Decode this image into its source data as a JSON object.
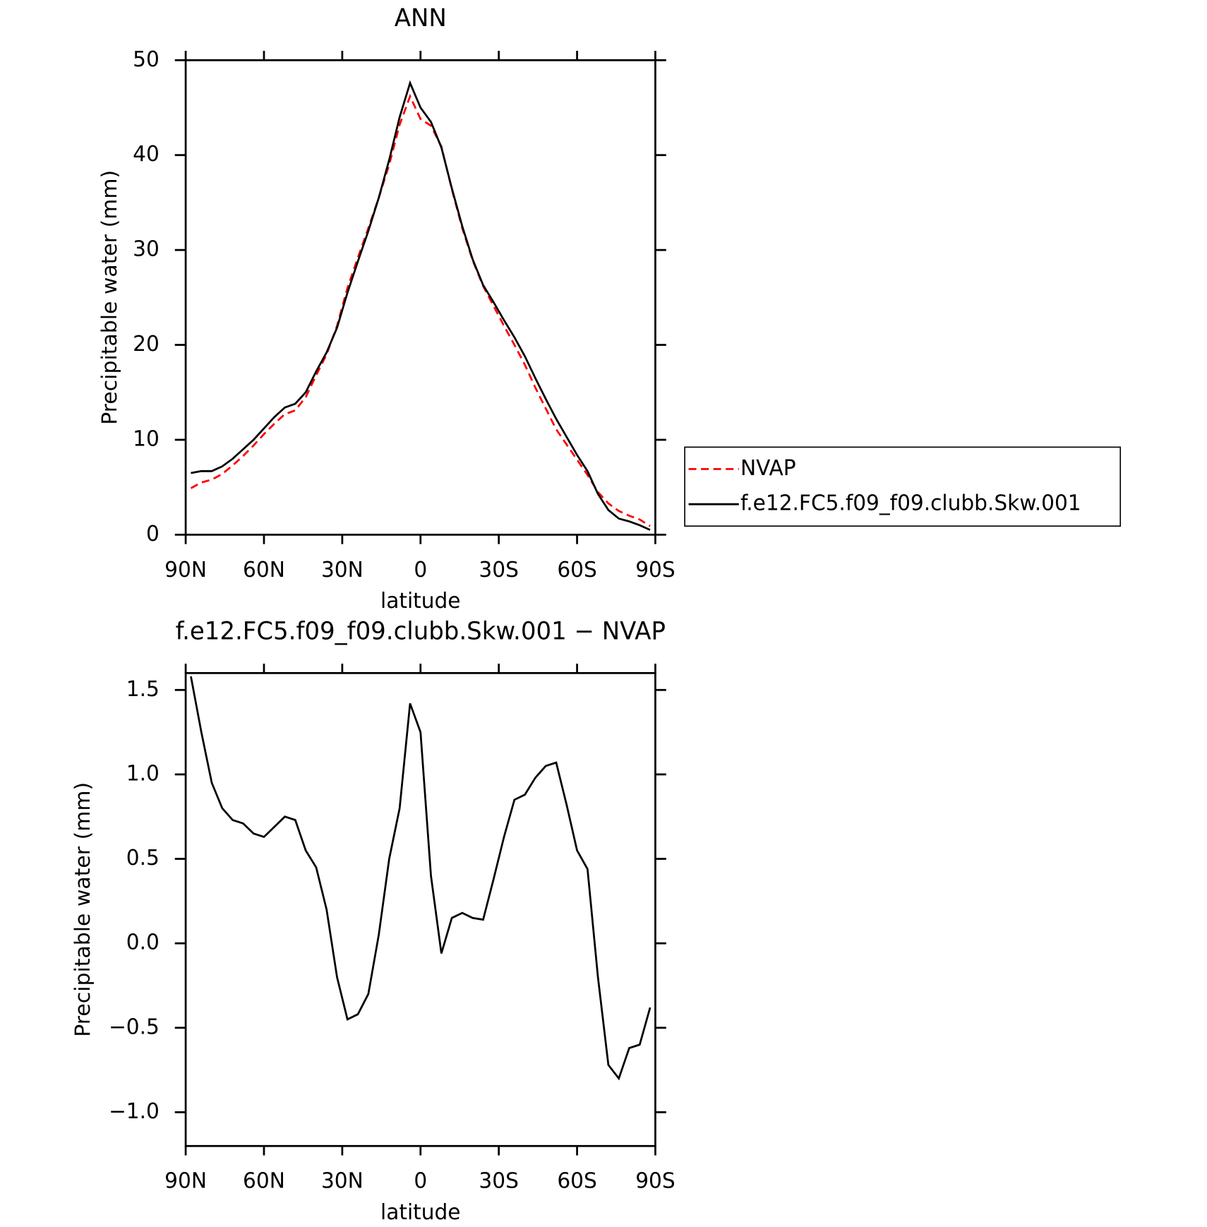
{
  "chart_data": [
    {
      "type": "line",
      "title": "ANN",
      "xlabel": "latitude",
      "ylabel": "Precipitable water (mm)",
      "x": [
        88,
        84,
        80,
        76,
        72,
        68,
        64,
        60,
        56,
        52,
        48,
        44,
        40,
        36,
        32,
        28,
        24,
        20,
        16,
        12,
        8,
        4,
        0,
        -4,
        -8,
        -12,
        -16,
        -20,
        -24,
        -28,
        -32,
        -36,
        -40,
        -44,
        -48,
        -52,
        -56,
        -60,
        -64,
        -68,
        -72,
        -76,
        -80,
        -84,
        -88
      ],
      "series": [
        {
          "name": "NVAP",
          "color": "#ff0000",
          "linestyle": "dashed",
          "values": [
            4.9,
            5.5,
            5.8,
            6.4,
            7.3,
            8.3,
            9.4,
            10.6,
            11.7,
            12.7,
            13.1,
            14.5,
            16.8,
            19.0,
            22.0,
            26.0,
            29.2,
            32.3,
            35.5,
            39.0,
            43.2,
            46.2,
            43.8,
            43.1,
            40.9,
            36.4,
            32.3,
            28.9,
            26.2,
            24.1,
            22.0,
            20.0,
            17.9,
            15.5,
            13.3,
            11.1,
            9.5,
            7.9,
            6.3,
            4.5,
            3.3,
            2.5,
            2.0,
            1.6,
            0.9
          ]
        },
        {
          "name": "f.e12.FC5.f09_f09.clubb.Skw.001",
          "color": "#000000",
          "linestyle": "solid",
          "values": [
            6.5,
            6.7,
            6.7,
            7.2,
            8.0,
            9.0,
            10.0,
            11.2,
            12.4,
            13.4,
            13.8,
            15.0,
            17.2,
            19.2,
            21.8,
            25.5,
            28.8,
            32.0,
            35.5,
            39.5,
            44.0,
            47.6,
            45.0,
            43.5,
            40.8,
            36.5,
            32.5,
            29.0,
            26.3,
            24.5,
            22.6,
            20.8,
            18.8,
            16.5,
            14.3,
            12.2,
            10.3,
            8.4,
            6.7,
            4.3,
            2.6,
            1.7,
            1.4,
            1.0,
            0.5
          ]
        }
      ],
      "xlim": [
        90,
        -90
      ],
      "xticks": [
        {
          "value": 90,
          "label": "90N"
        },
        {
          "value": 60,
          "label": "60N"
        },
        {
          "value": 30,
          "label": "30N"
        },
        0,
        {
          "value": -30,
          "label": "30S"
        },
        {
          "value": -60,
          "label": "60S"
        },
        {
          "value": -90,
          "label": "90S"
        }
      ],
      "ylim": [
        0,
        50
      ],
      "yticks": [
        0,
        10,
        20,
        30,
        40,
        50
      ],
      "legend": "right"
    },
    {
      "type": "line",
      "title": "f.e12.FC5.f09_f09.clubb.Skw.001 − NVAP",
      "xlabel": "latitude",
      "ylabel": "Precipitable water (mm)",
      "x": [
        88,
        84,
        80,
        76,
        72,
        68,
        64,
        60,
        56,
        52,
        48,
        44,
        40,
        36,
        32,
        28,
        24,
        20,
        16,
        12,
        8,
        4,
        0,
        -4,
        -8,
        -12,
        -16,
        -20,
        -24,
        -28,
        -32,
        -36,
        -40,
        -44,
        -48,
        -52,
        -56,
        -60,
        -64,
        -68,
        -72,
        -76,
        -80,
        -84,
        -88
      ],
      "values": [
        1.58,
        1.25,
        0.95,
        0.8,
        0.73,
        0.71,
        0.65,
        0.63,
        0.69,
        0.75,
        0.73,
        0.55,
        0.45,
        0.2,
        -0.2,
        -0.45,
        -0.42,
        -0.3,
        0.05,
        0.5,
        0.8,
        1.42,
        1.25,
        0.4,
        -0.06,
        0.15,
        0.18,
        0.15,
        0.14,
        0.38,
        0.63,
        0.85,
        0.88,
        0.98,
        1.05,
        1.07,
        0.82,
        0.55,
        0.44,
        -0.2,
        -0.72,
        -0.8,
        -0.62,
        -0.6,
        -0.38
      ],
      "color": "#000000",
      "xlim": [
        90,
        -90
      ],
      "xticks": [
        {
          "value": 90,
          "label": "90N"
        },
        {
          "value": 60,
          "label": "60N"
        },
        {
          "value": 30,
          "label": "30N"
        },
        0,
        {
          "value": -30,
          "label": "30S"
        },
        {
          "value": -60,
          "label": "60S"
        },
        {
          "value": -90,
          "label": "90S"
        }
      ],
      "ylim": [
        -1.2,
        1.6
      ],
      "yticks": [
        {
          "value": -1,
          "label": "−1.0"
        },
        {
          "value": -0.5,
          "label": "−0.5"
        },
        {
          "value": 0,
          "label": "0.0"
        },
        0.5,
        {
          "value": 1,
          "label": "1.0"
        },
        1.5
      ]
    }
  ]
}
